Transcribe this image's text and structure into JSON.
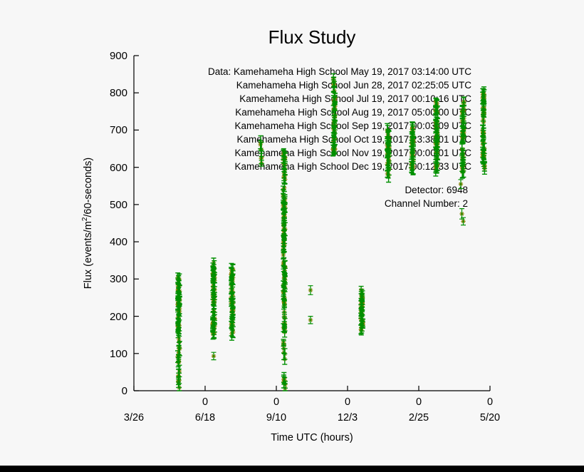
{
  "page": {
    "background": "#f7f7f7",
    "bottom_bar_color": "#000000"
  },
  "chart_data": {
    "type": "scatter",
    "title": "Flux Study",
    "xlabel": "Time UTC (hours)",
    "ylabel_prefix": "Flux (events/m",
    "ylabel_sup": "2",
    "ylabel_suffix": "/60-seconds)",
    "ylim": [
      0,
      900
    ],
    "yticks": [
      0,
      100,
      200,
      300,
      400,
      500,
      600,
      700,
      800,
      900
    ],
    "x_ticks": [
      {
        "frac": 0.0,
        "hour": "",
        "date": "3/26"
      },
      {
        "frac": 0.2,
        "hour": "0",
        "date": "6/18"
      },
      {
        "frac": 0.4,
        "hour": "0",
        "date": "9/10"
      },
      {
        "frac": 0.6,
        "hour": "0",
        "date": "12/3"
      },
      {
        "frac": 0.8,
        "hour": "0",
        "date": "2/25"
      },
      {
        "frac": 1.0,
        "hour": "0",
        "date": "5/20"
      }
    ],
    "legend_position": "none",
    "grid": false,
    "annotations": {
      "data_lines": [
        "Data: Kamehameha High School May 19, 2017 03:14:00 UTC",
        "Kamehameha High School Jun 28, 2017 02:25:05 UTC",
        "Kamehameha High School Jul 19, 2017 00:10:16 UTC",
        "Kamehameha High School Aug 19, 2017 05:00:00 UTC",
        "Kamehameha High School Sep 19, 2017 00:03:09 UTC",
        "Kamehameha High School Oct 19, 2017 23:38:01 UTC",
        "Kamehameha High School Nov 19, 2017 00:00:01 UTC",
        "Kamehameha High School Dec 19, 2017 00:12:33 UTC"
      ],
      "detector": "Detector: 6948",
      "channel": "Channel Number: 2"
    },
    "colors": {
      "errorbar": "#008f00",
      "marker": "#808000",
      "axis": "#000000"
    },
    "clusters": [
      {
        "x": 0.126,
        "ymin": 155,
        "ymax": 305,
        "n": 42
      },
      {
        "x": 0.126,
        "ymin": 0,
        "ymax": 95,
        "n": 12
      },
      {
        "x": 0.126,
        "ymin": 100,
        "ymax": 150,
        "n": 5
      },
      {
        "x": 0.224,
        "ymin": 150,
        "ymax": 345,
        "n": 48
      },
      {
        "x": 0.276,
        "ymin": 148,
        "ymax": 330,
        "n": 42
      },
      {
        "x": 0.356,
        "ymin": 590,
        "ymax": 680,
        "n": 6
      },
      {
        "x": 0.422,
        "ymin": 150,
        "ymax": 645,
        "n": 90
      },
      {
        "x": 0.422,
        "ymin": 0,
        "ymax": 145,
        "n": 12
      },
      {
        "x": 0.562,
        "ymin": 645,
        "ymax": 845,
        "n": 40
      },
      {
        "x": 0.64,
        "ymin": 150,
        "ymax": 275,
        "n": 32
      },
      {
        "x": 0.714,
        "ymin": 570,
        "ymax": 700,
        "n": 32
      },
      {
        "x": 0.782,
        "ymin": 595,
        "ymax": 710,
        "n": 30
      },
      {
        "x": 0.85,
        "ymin": 595,
        "ymax": 782,
        "n": 45
      },
      {
        "x": 0.924,
        "ymin": 585,
        "ymax": 785,
        "n": 40
      },
      {
        "x": 0.982,
        "ymin": 592,
        "ymax": 805,
        "n": 45
      }
    ],
    "points": [
      {
        "x": 0.224,
        "y": 93,
        "err": 10
      },
      {
        "x": 0.496,
        "y": 270,
        "err": 12
      },
      {
        "x": 0.496,
        "y": 190,
        "err": 10
      },
      {
        "x": 0.918,
        "y": 555,
        "err": 12
      },
      {
        "x": 0.921,
        "y": 475,
        "err": 14
      },
      {
        "x": 0.925,
        "y": 455,
        "err": 10
      }
    ]
  }
}
